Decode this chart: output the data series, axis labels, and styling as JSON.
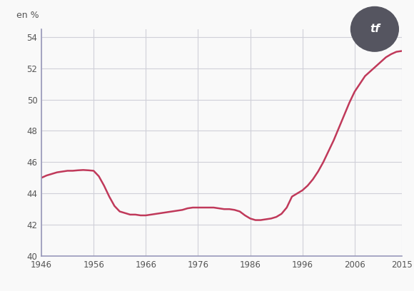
{
  "ylabel_text": "en %",
  "xlim": [
    1946,
    2015
  ],
  "ylim": [
    40,
    54.5
  ],
  "yticks": [
    40,
    42,
    44,
    46,
    48,
    50,
    52,
    54
  ],
  "xticks": [
    1946,
    1956,
    1966,
    1976,
    1986,
    1996,
    2006,
    2015
  ],
  "line_color": "#c0395a",
  "line_width": 1.8,
  "grid_color": "#d0d0d8",
  "bg_color": "#f9f9f9",
  "spine_color": "#9999bb",
  "tick_label_color": "#555555",
  "watermark_bg": "#555560",
  "watermark_text": "tf",
  "years": [
    1946,
    1947,
    1948,
    1949,
    1950,
    1951,
    1952,
    1953,
    1954,
    1955,
    1956,
    1957,
    1958,
    1959,
    1960,
    1961,
    1962,
    1963,
    1964,
    1965,
    1966,
    1967,
    1968,
    1969,
    1970,
    1971,
    1972,
    1973,
    1974,
    1975,
    1976,
    1977,
    1978,
    1979,
    1980,
    1981,
    1982,
    1983,
    1984,
    1985,
    1986,
    1987,
    1988,
    1989,
    1990,
    1991,
    1992,
    1993,
    1994,
    1995,
    1996,
    1997,
    1998,
    1999,
    2000,
    2001,
    2002,
    2003,
    2004,
    2005,
    2006,
    2007,
    2008,
    2009,
    2010,
    2011,
    2012,
    2013,
    2014,
    2015
  ],
  "values": [
    45.0,
    45.15,
    45.25,
    45.35,
    45.4,
    45.45,
    45.45,
    45.48,
    45.5,
    45.48,
    45.45,
    45.1,
    44.5,
    43.8,
    43.2,
    42.85,
    42.75,
    42.65,
    42.65,
    42.6,
    42.6,
    42.65,
    42.7,
    42.75,
    42.8,
    42.85,
    42.9,
    42.95,
    43.05,
    43.1,
    43.1,
    43.1,
    43.1,
    43.1,
    43.05,
    43.0,
    43.0,
    42.95,
    42.85,
    42.6,
    42.4,
    42.3,
    42.3,
    42.35,
    42.4,
    42.5,
    42.7,
    43.1,
    43.8,
    44.0,
    44.2,
    44.5,
    44.9,
    45.4,
    46.0,
    46.7,
    47.4,
    48.2,
    49.0,
    49.8,
    50.5,
    51.0,
    51.5,
    51.8,
    52.1,
    52.4,
    52.7,
    52.9,
    53.05,
    53.1
  ]
}
